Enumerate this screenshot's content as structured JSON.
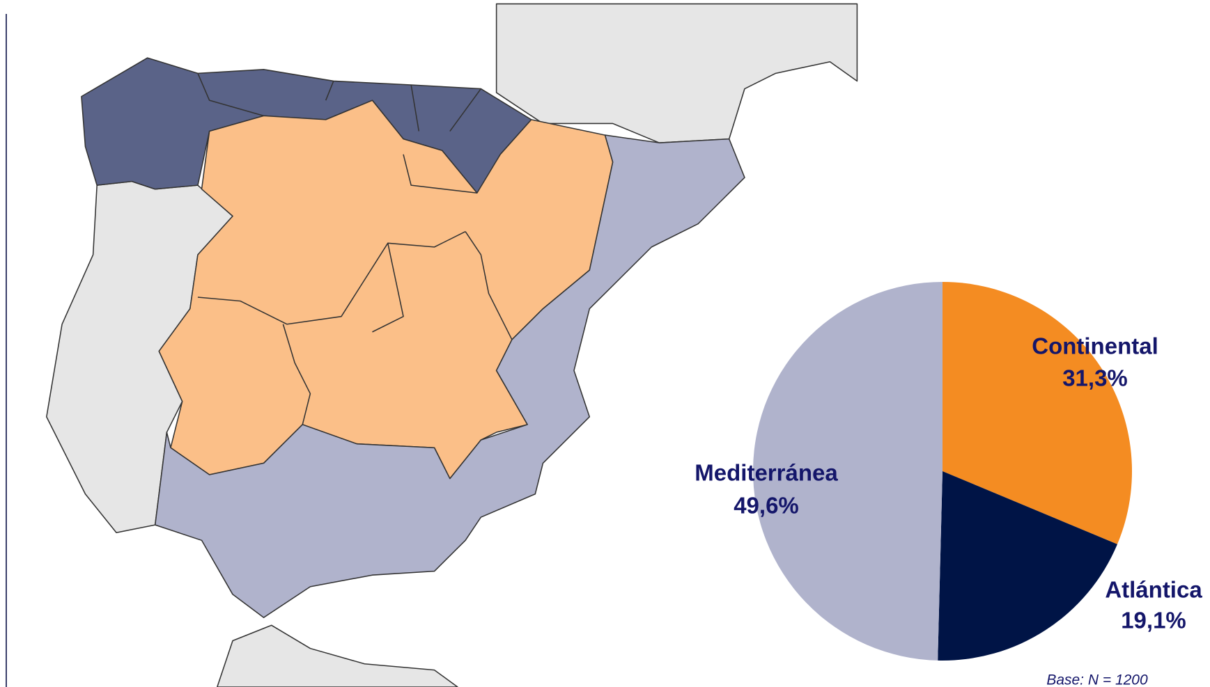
{
  "chart_data": {
    "type": "pie",
    "categories": [
      "Continental",
      "Atlántica",
      "Mediterránea"
    ],
    "values": [
      31.3,
      19.1,
      49.6
    ],
    "value_labels": [
      "31,3%",
      "19,1%",
      "49,6%"
    ],
    "colors": [
      "#f48c22",
      "#001446",
      "#b0b3cc"
    ],
    "note": "Base: N = 1200"
  }
}
